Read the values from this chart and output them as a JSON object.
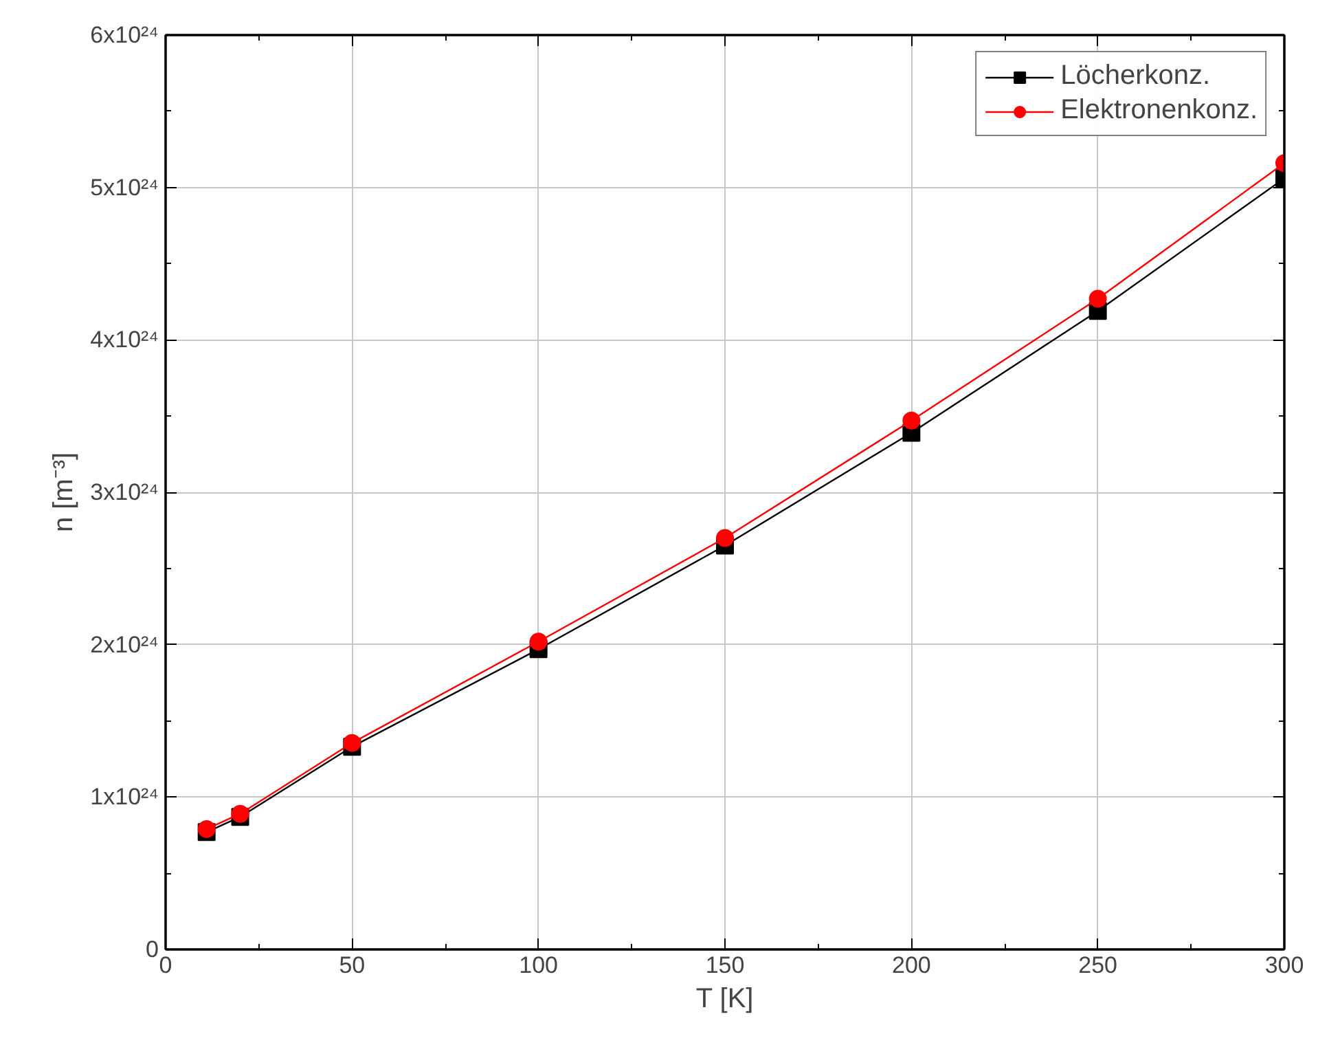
{
  "chart_data": {
    "type": "line",
    "xlabel": "T [K]",
    "ylabel": "n [m⁻³]",
    "x": [
      11,
      20,
      50,
      100,
      150,
      200,
      250,
      300
    ],
    "series": [
      {
        "name": "Löcherkonz.",
        "color": "#000000",
        "marker": "square",
        "values": [
          7.7e+23,
          8.7e+23,
          1.33e+24,
          1.97e+24,
          2.65e+24,
          3.39e+24,
          4.19e+24,
          5.06e+24
        ]
      },
      {
        "name": "Elektronenkonz.",
        "color": "#ff0000",
        "marker": "circle",
        "values": [
          7.9e+23,
          8.9e+23,
          1.355e+24,
          2.02e+24,
          2.7e+24,
          3.47e+24,
          4.27e+24,
          5.16e+24
        ]
      }
    ],
    "xlim": [
      0,
      300
    ],
    "xticks": [
      0,
      50,
      100,
      150,
      200,
      250,
      300
    ],
    "ylim": [
      0,
      6e+24
    ],
    "yticks": [
      0,
      {
        "value": 1e+24,
        "label": "1x10²⁴"
      },
      {
        "value": 2e+24,
        "label": "2x10²⁴"
      },
      {
        "value": 3e+24,
        "label": "3x10²⁴"
      },
      {
        "value": 4e+24,
        "label": "4x10²⁴"
      },
      {
        "value": 5e+24,
        "label": "5x10²⁴"
      },
      {
        "value": 6e+24,
        "label": "6x10²⁴"
      }
    ],
    "grid": true,
    "legend": "top right",
    "line_style": "solid"
  }
}
